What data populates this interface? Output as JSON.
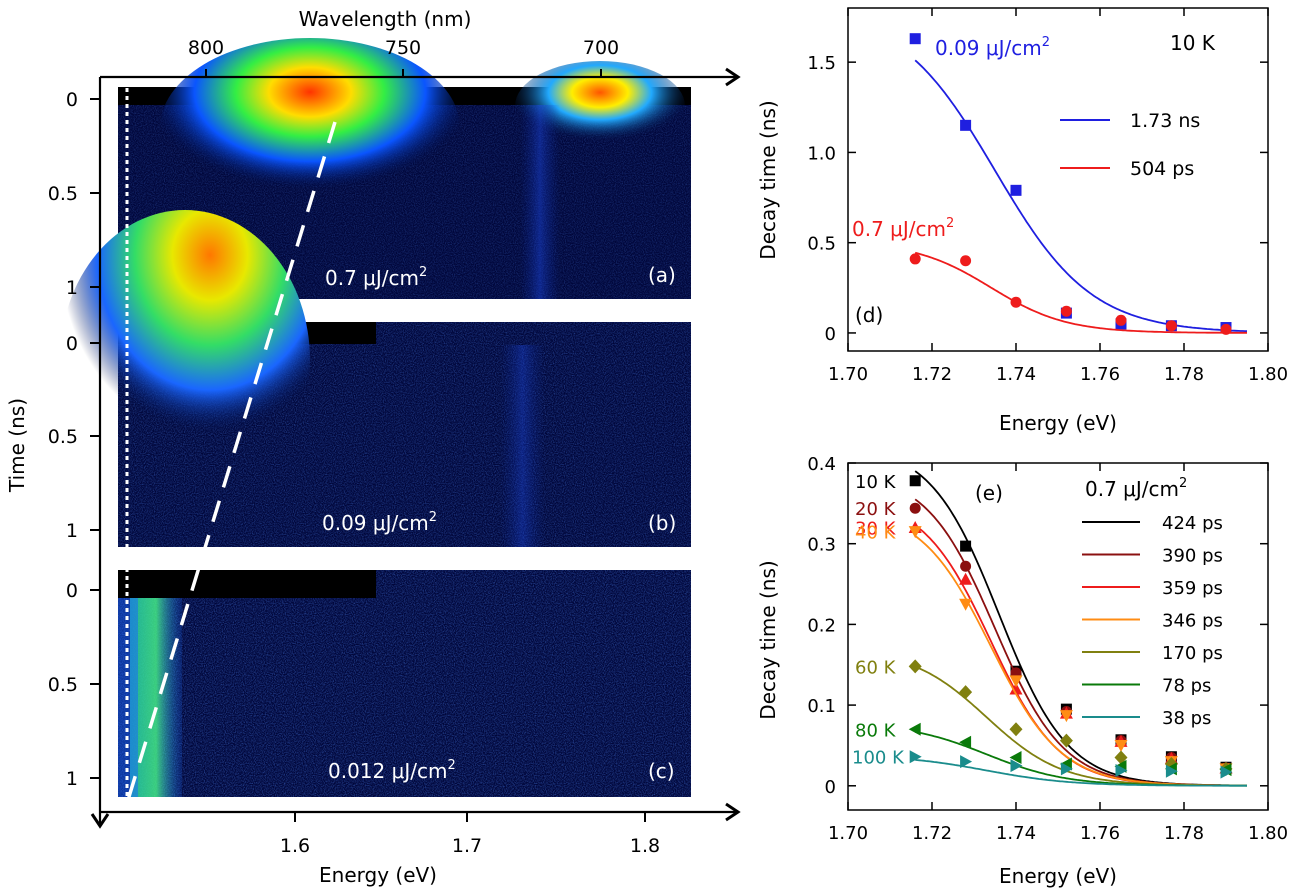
{
  "chart_data": [
    {
      "id": "left",
      "type": "heatmap",
      "top_axis": {
        "label": "Wavelength (nm)",
        "ticks": [
          "800",
          "750",
          "700"
        ]
      },
      "bottom_axis": {
        "label": "Energy (eV)",
        "ticks": [
          "1.6",
          "1.7",
          "1.8"
        ]
      },
      "y_axis": {
        "label": "Time (ns)",
        "ticks": [
          "0",
          "0.5",
          "1"
        ]
      },
      "panels": [
        {
          "id": "a",
          "tag": "(a)",
          "fluence": "0.7 μJ/cm",
          "sup": "2"
        },
        {
          "id": "b",
          "tag": "(b)",
          "fluence": "0.09 μJ/cm",
          "sup": "2"
        },
        {
          "id": "c",
          "tag": "(c)",
          "fluence": "0.012 μJ/cm",
          "sup": "2"
        }
      ]
    },
    {
      "id": "d",
      "type": "scatter",
      "tag": "(d)",
      "xlabel": "Energy (eV)",
      "ylabel": "Decay time (ns)",
      "xlim": [
        1.7,
        1.8
      ],
      "ylim": [
        -0.1,
        1.8
      ],
      "xticks": [
        "1.70",
        "1.72",
        "1.74",
        "1.76",
        "1.78",
        "1.80"
      ],
      "yticks": [
        "0",
        "0.5",
        "1.0",
        "1.5"
      ],
      "temperature": "10 K",
      "series": [
        {
          "name": "1.73 ns",
          "label": "0.09 μJ/cm",
          "sup": "2",
          "color": "#1f1fe0",
          "marker": "square",
          "x": [
            1.716,
            1.728,
            1.74,
            1.752,
            1.765,
            1.777,
            1.79
          ],
          "y": [
            1.63,
            1.15,
            0.79,
            0.11,
            0.05,
            0.04,
            0.03
          ],
          "fit": {
            "A": 1.8,
            "E0": 1.735,
            "w": 0.0115
          }
        },
        {
          "name": "504 ps",
          "label": "0.7 μJ/cm",
          "sup": "2",
          "color": "#ee1c1c",
          "marker": "circle",
          "x": [
            1.716,
            1.728,
            1.74,
            1.752,
            1.765,
            1.777,
            1.79
          ],
          "y": [
            0.41,
            0.4,
            0.17,
            0.12,
            0.07,
            0.04,
            0.02
          ],
          "fit": {
            "A": 0.504,
            "E0": 1.734,
            "w": 0.009
          }
        }
      ]
    },
    {
      "id": "e",
      "type": "scatter",
      "tag": "(e)",
      "xlabel": "Energy (eV)",
      "ylabel": "Decay time (ns)",
      "xlim": [
        1.7,
        1.8
      ],
      "ylim": [
        -0.03,
        0.4
      ],
      "xticks": [
        "1.70",
        "1.72",
        "1.74",
        "1.76",
        "1.78",
        "1.80"
      ],
      "yticks": [
        "0",
        "0.1",
        "0.2",
        "0.3",
        "0.4"
      ],
      "fluence": "0.7 μJ/cm",
      "sup": "2",
      "series": [
        {
          "name": "424 ps",
          "temp": "10 K",
          "color": "#000000",
          "marker": "square",
          "x": [
            1.716,
            1.728,
            1.74,
            1.752,
            1.765,
            1.777,
            1.79
          ],
          "y": [
            0.378,
            0.297,
            0.142,
            0.095,
            0.057,
            0.036,
            0.023
          ],
          "fit": {
            "A": 0.424,
            "E0": 1.736,
            "w": 0.0082
          }
        },
        {
          "name": "390 ps",
          "temp": "20 K",
          "color": "#8b1010",
          "marker": "circle",
          "x": [
            1.716,
            1.728,
            1.74,
            1.752,
            1.765,
            1.777,
            1.79
          ],
          "y": [
            0.344,
            0.272,
            0.14,
            0.092,
            0.056,
            0.035,
            0.022
          ],
          "fit": {
            "A": 0.39,
            "E0": 1.735,
            "w": 0.0082
          }
        },
        {
          "name": "359 ps",
          "temp": "30 K",
          "color": "#ee1c1c",
          "marker": "triangle-up",
          "x": [
            1.716,
            1.728,
            1.74,
            1.752,
            1.765,
            1.777,
            1.79
          ],
          "y": [
            0.32,
            0.256,
            0.12,
            0.09,
            0.055,
            0.034,
            0.022
          ],
          "fit": {
            "A": 0.359,
            "E0": 1.734,
            "w": 0.0082
          }
        },
        {
          "name": "346 ps",
          "temp": "40 K",
          "color": "#ff8c14",
          "marker": "triangle-down",
          "x": [
            1.716,
            1.728,
            1.74,
            1.752,
            1.765,
            1.777,
            1.79
          ],
          "y": [
            0.315,
            0.225,
            0.13,
            0.087,
            0.05,
            0.03,
            0.021
          ],
          "fit": {
            "A": 0.346,
            "E0": 1.734,
            "w": 0.0084
          }
        },
        {
          "name": "170 ps",
          "temp": "60 K",
          "color": "#808010",
          "marker": "diamond",
          "x": [
            1.716,
            1.728,
            1.74,
            1.752,
            1.765,
            1.777,
            1.79
          ],
          "y": [
            0.148,
            0.116,
            0.07,
            0.056,
            0.035,
            0.027,
            0.021
          ],
          "fit": {
            "A": 0.17,
            "E0": 1.733,
            "w": 0.009
          }
        },
        {
          "name": "78 ps",
          "temp": "80 K",
          "color": "#0a7a0a",
          "marker": "triangle-left",
          "x": [
            1.716,
            1.728,
            1.74,
            1.752,
            1.765,
            1.777,
            1.79
          ],
          "y": [
            0.07,
            0.054,
            0.035,
            0.027,
            0.024,
            0.021,
            0.02
          ],
          "fit": {
            "A": 0.078,
            "E0": 1.733,
            "w": 0.0095
          }
        },
        {
          "name": "38 ps",
          "temp": "100 K",
          "color": "#1a8c8c",
          "marker": "triangle-right",
          "x": [
            1.716,
            1.728,
            1.74,
            1.752,
            1.765,
            1.777,
            1.79
          ],
          "y": [
            0.036,
            0.03,
            0.025,
            0.021,
            0.019,
            0.018,
            0.017
          ],
          "fit": {
            "A": 0.038,
            "E0": 1.733,
            "w": 0.01
          }
        }
      ]
    }
  ]
}
